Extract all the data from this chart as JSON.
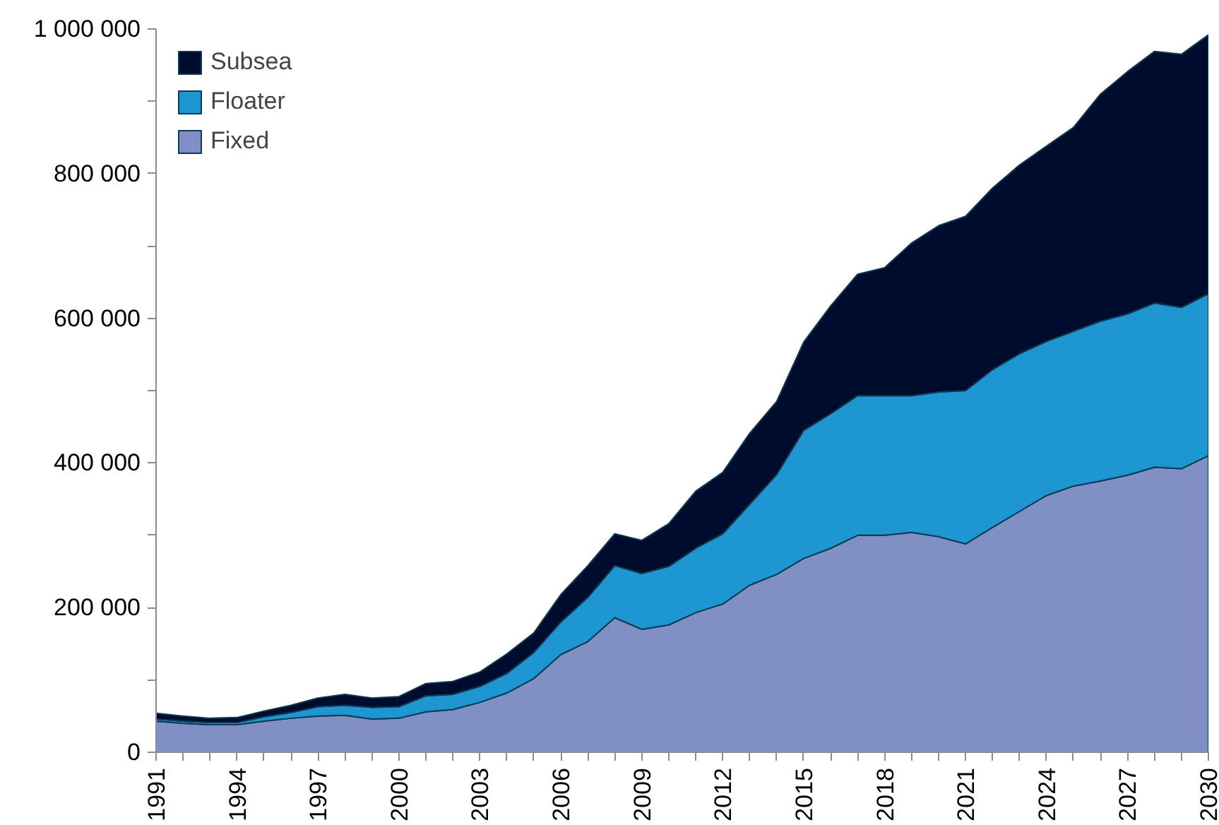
{
  "chart_data": {
    "type": "area",
    "stacked": true,
    "legend": "top left",
    "grid": false,
    "x": [
      1991,
      1992,
      1993,
      1994,
      1995,
      1996,
      1997,
      1998,
      1999,
      2000,
      2001,
      2002,
      2003,
      2004,
      2005,
      2006,
      2007,
      2008,
      2009,
      2010,
      2011,
      2012,
      2013,
      2014,
      2015,
      2016,
      2017,
      2018,
      2019,
      2020,
      2021,
      2022,
      2023,
      2024,
      2025,
      2026,
      2027,
      2028,
      2029,
      2030
    ],
    "series": [
      {
        "name": "Fixed",
        "color": "#8090c4",
        "values": [
          43000,
          40000,
          38000,
          38000,
          43000,
          47000,
          50000,
          51000,
          46000,
          47000,
          56000,
          59000,
          69000,
          82000,
          102000,
          135000,
          153000,
          186000,
          170000,
          176000,
          193000,
          205000,
          231000,
          246000,
          268000,
          282000,
          300000,
          300000,
          304000,
          298000,
          288000,
          311000,
          333000,
          355000,
          368000,
          375000,
          383000,
          394000,
          392000,
          410000
        ]
      },
      {
        "name": "Floater",
        "color": "#1e96d2",
        "values": [
          3000,
          3000,
          3000,
          3000,
          6000,
          8000,
          13000,
          14000,
          16000,
          16000,
          22000,
          21000,
          22000,
          27000,
          36000,
          45000,
          61000,
          72000,
          77000,
          81000,
          89000,
          97000,
          112000,
          138000,
          177000,
          186000,
          193000,
          193000,
          189000,
          200000,
          212000,
          218000,
          218000,
          213000,
          214000,
          221000,
          223000,
          227000,
          223000,
          224000
        ]
      },
      {
        "name": "Subsea",
        "color": "#000c2e",
        "values": [
          8000,
          7000,
          6000,
          7000,
          8000,
          10000,
          12000,
          15000,
          13000,
          14000,
          17000,
          18000,
          20000,
          27000,
          27000,
          38000,
          44000,
          44000,
          46000,
          59000,
          79000,
          85000,
          98000,
          101000,
          122000,
          149000,
          168000,
          177000,
          211000,
          230000,
          241000,
          251000,
          261000,
          270000,
          282000,
          314000,
          335000,
          348000,
          350000,
          358000
        ]
      }
    ],
    "xlim": [
      1991,
      2030
    ],
    "xticks": [
      1991,
      {
        "value": 1992,
        "label": null
      },
      {
        "value": 1993,
        "label": null
      },
      1994,
      {
        "value": 1995,
        "label": null
      },
      {
        "value": 1996,
        "label": null
      },
      1997,
      {
        "value": 1998,
        "label": null
      },
      {
        "value": 1999,
        "label": null
      },
      2000,
      {
        "value": 2001,
        "label": null
      },
      {
        "value": 2002,
        "label": null
      },
      2003,
      {
        "value": 2004,
        "label": null
      },
      {
        "value": 2005,
        "label": null
      },
      2006,
      {
        "value": 2007,
        "label": null
      },
      {
        "value": 2008,
        "label": null
      },
      2009,
      {
        "value": 2010,
        "label": null
      },
      {
        "value": 2011,
        "label": null
      },
      2012,
      {
        "value": 2013,
        "label": null
      },
      {
        "value": 2014,
        "label": null
      },
      2015,
      {
        "value": 2016,
        "label": null
      },
      {
        "value": 2017,
        "label": null
      },
      2018,
      {
        "value": 2019,
        "label": null
      },
      {
        "value": 2020,
        "label": null
      },
      2021,
      {
        "value": 2022,
        "label": null
      },
      {
        "value": 2023,
        "label": null
      },
      2024,
      {
        "value": 2025,
        "label": null
      },
      {
        "value": 2026,
        "label": null
      },
      2027,
      {
        "value": 2028,
        "label": null
      },
      {
        "value": 2029,
        "label": null
      },
      2030
    ],
    "ylim": [
      0,
      1000000
    ],
    "yticks": [
      0,
      {
        "value": 100000,
        "label": null
      },
      {
        "value": 200000,
        "label": "200 000"
      },
      {
        "value": 300000,
        "label": null
      },
      {
        "value": 400000,
        "label": "400 000"
      },
      {
        "value": 500000,
        "label": null
      },
      {
        "value": 600000,
        "label": "600 000"
      },
      {
        "value": 700000,
        "label": null
      },
      {
        "value": 800000,
        "label": "800 000"
      },
      {
        "value": 900000,
        "label": null
      },
      {
        "value": 1000000,
        "label": "1 000 000"
      }
    ]
  }
}
